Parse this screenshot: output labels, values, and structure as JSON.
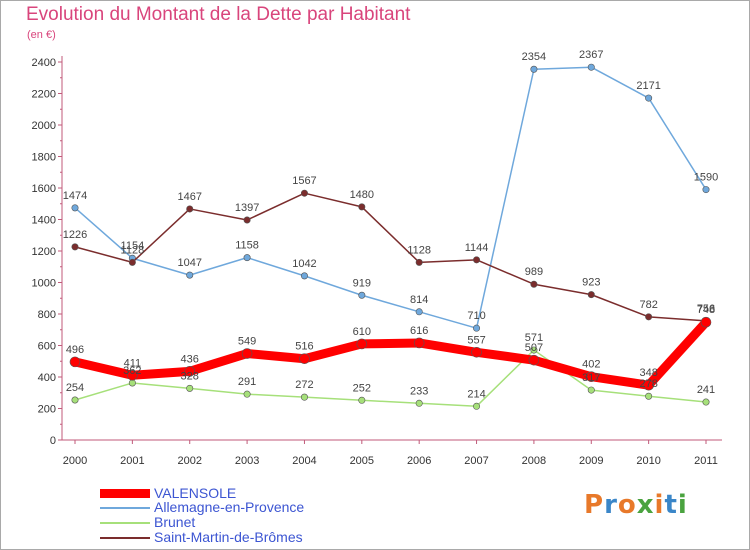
{
  "header": {
    "title": "Evolution du Montant de la Dette par Habitant",
    "unit": "(en €)"
  },
  "logo": {
    "text": "Proxiti",
    "colors": [
      "#e8792a",
      "#3a86c8",
      "#e8792a",
      "#4aa33f",
      "#e8792a",
      "#3a86c8",
      "#4aa33f"
    ]
  },
  "chart_data": {
    "type": "line",
    "title": "Evolution du Montant de la Dette par Habitant",
    "ylabel": "(en €)",
    "xlabel": "",
    "ylim": [
      0,
      2400
    ],
    "yticks": [
      0,
      200,
      400,
      600,
      800,
      1000,
      1200,
      1400,
      1600,
      1800,
      2000,
      2200,
      2400
    ],
    "grid": false,
    "legend_position": "bottom-left",
    "x": [
      "2000",
      "2001",
      "2002",
      "2003",
      "2004",
      "2005",
      "2006",
      "2007",
      "2008",
      "2009",
      "2010",
      "2011"
    ],
    "series": [
      {
        "name": "VALENSOLE",
        "color": "#ff0000",
        "values": [
          496,
          411,
          436,
          549,
          516,
          610,
          616,
          557,
          507,
          402,
          348,
          748
        ]
      },
      {
        "name": "Allemagne-en-Provence",
        "color": "#6fa8dc",
        "values": [
          1474,
          1154,
          1047,
          1158,
          1042,
          919,
          814,
          710,
          2354,
          2367,
          2171,
          1590
        ]
      },
      {
        "name": "Brunet",
        "color": "#a6e07a",
        "values": [
          254,
          362,
          328,
          291,
          272,
          252,
          233,
          214,
          571,
          317,
          278,
          241
        ]
      },
      {
        "name": "Saint-Martin-de-Brômes",
        "color": "#7b2d2d",
        "values": [
          1226,
          1128,
          1467,
          1397,
          1567,
          1480,
          1128,
          1144,
          989,
          923,
          782,
          756
        ]
      }
    ]
  }
}
